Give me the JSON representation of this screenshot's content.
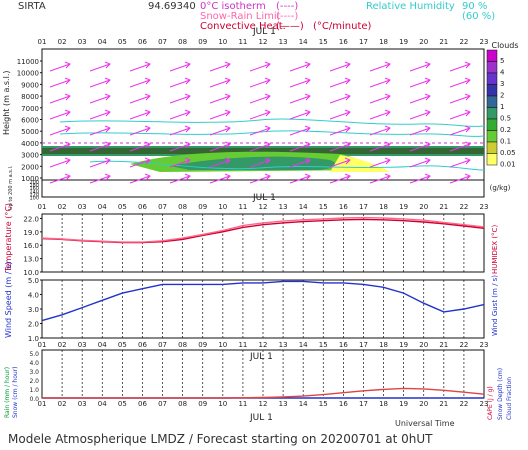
{
  "header": {
    "station": "SIRTA",
    "code": "94.69340",
    "legend_left": [
      {
        "label": "0°C isotherm",
        "sample": "(----)",
        "color": "#cc33cc"
      },
      {
        "label": "Snow-Rain Limit",
        "sample": "(----)",
        "color": "#ff66aa"
      },
      {
        "label": "Convective Heat.",
        "sample": "(——)",
        "unit": "(°C/minute)",
        "color": "#cc0033"
      }
    ],
    "legend_right": {
      "label": "Relative Humidity",
      "v1": "90 %",
      "v2": "(60 %)",
      "color": "#33cccc"
    }
  },
  "hours": [
    "01",
    "02",
    "03",
    "04",
    "05",
    "06",
    "07",
    "08",
    "09",
    "10",
    "11",
    "12",
    "13",
    "14",
    "15",
    "16",
    "17",
    "18",
    "19",
    "20",
    "21",
    "22",
    "23"
  ],
  "date_label": "JUL   1",
  "panel1": {
    "ylabel": "Height  (m a.s.l.)",
    "ylabel2": "Up to 200 m a.s.l.",
    "yticks": [
      "11000",
      "10000",
      "9000",
      "8000",
      "7000",
      "6000",
      "5000",
      "4000",
      "3000",
      "2000",
      "1000"
    ],
    "yticks_low": [
      "200",
      "180",
      "160",
      "140",
      "120",
      "100"
    ],
    "clouds_title": "Clouds",
    "clouds_unit": "(g/kg)",
    "colorbar": [
      {
        "label": "5",
        "color": "#cc00cc"
      },
      {
        "label": "4",
        "color": "#9933cc"
      },
      {
        "label": "3",
        "color": "#6633cc"
      },
      {
        "label": "2",
        "color": "#3333aa"
      },
      {
        "label": "1",
        "color": "#336699"
      },
      {
        "label": "0.5",
        "color": "#339966"
      },
      {
        "label": "0.2",
        "color": "#33aa33"
      },
      {
        "label": "0.1",
        "color": "#66cc33"
      },
      {
        "label": "0.05",
        "color": "#cccc33"
      },
      {
        "label": "0.01",
        "color": "#ffff66"
      }
    ]
  },
  "panel2": {
    "ylabel": "Temperature (°C)",
    "ylabel_right": "HUMIDEX (°C)",
    "yticks": [
      "22.0",
      "19.0",
      "16.0",
      "13.0",
      "10.0"
    ]
  },
  "panel3": {
    "ylabel": "Wind Speed (m / s)",
    "ylabel_right": "Wind Gust (m / s)",
    "yticks": [
      "5.0",
      "4.0",
      "3.0",
      "2.0",
      "1.0"
    ]
  },
  "panel4": {
    "ylabel_left1": "Rain (mm / hour)",
    "ylabel_left2": "Snow (cm / hour)",
    "ylabel_right1": "CAPE (J / g)",
    "ylabel_right2": "Snow Depth (cm)",
    "ylabel_right3": "Cloud Fraction",
    "yticks": [
      "5.0",
      "4.0",
      "3.0",
      "2.0",
      "1.0",
      "0.0"
    ],
    "xlabel": "Universal Time"
  },
  "footer": "Modele Atmospherique LMDZ / Forecast starting on 20200701 at 0hUT",
  "chart_data": [
    {
      "type": "line",
      "title": "",
      "ylabel": "Temperature (°C)",
      "ylim": [
        10,
        23
      ],
      "x": [
        "01",
        "02",
        "03",
        "04",
        "05",
        "06",
        "07",
        "08",
        "09",
        "10",
        "11",
        "12",
        "13",
        "14",
        "15",
        "16",
        "17",
        "18",
        "19",
        "20",
        "21",
        "22",
        "23"
      ],
      "series": [
        {
          "color": "#cc0033",
          "values": [
            17.5,
            17.3,
            17.0,
            16.8,
            16.6,
            16.6,
            16.8,
            17.3,
            18.2,
            19.0,
            20.0,
            20.6,
            21.0,
            21.3,
            21.5,
            21.7,
            21.8,
            21.7,
            21.5,
            21.2,
            20.8,
            20.3,
            19.8
          ]
        },
        {
          "color": "#ff6688",
          "values": [
            17.6,
            17.4,
            17.1,
            16.9,
            16.7,
            16.7,
            17.0,
            17.6,
            18.4,
            19.3,
            20.4,
            21.0,
            21.4,
            21.7,
            21.9,
            22.1,
            22.2,
            22.1,
            21.9,
            21.6,
            21.1,
            20.6,
            20.1
          ]
        }
      ]
    },
    {
      "type": "line",
      "title": "",
      "ylabel": "Wind Speed (m / s)",
      "ylim": [
        1,
        5
      ],
      "x": [
        "01",
        "02",
        "03",
        "04",
        "05",
        "06",
        "07",
        "08",
        "09",
        "10",
        "11",
        "12",
        "13",
        "14",
        "15",
        "16",
        "17",
        "18",
        "19",
        "20",
        "21",
        "22",
        "23"
      ],
      "series": [
        {
          "color": "#2233cc",
          "values": [
            2.2,
            2.6,
            3.1,
            3.6,
            4.1,
            4.4,
            4.7,
            4.7,
            4.7,
            4.7,
            4.8,
            4.8,
            4.9,
            4.9,
            4.8,
            4.8,
            4.7,
            4.5,
            4.1,
            3.4,
            2.8,
            3.0,
            3.3
          ]
        }
      ]
    },
    {
      "type": "line",
      "title": "",
      "ylabel": "Rain (mm / hour)",
      "ylim": [
        0,
        5
      ],
      "x": [
        "01",
        "02",
        "03",
        "04",
        "05",
        "06",
        "07",
        "08",
        "09",
        "10",
        "11",
        "12",
        "13",
        "14",
        "15",
        "16",
        "17",
        "18",
        "19",
        "20",
        "21",
        "22",
        "23"
      ],
      "series": [
        {
          "color": "#2233cc",
          "values": [
            0,
            0,
            0,
            0,
            0,
            0,
            0,
            0,
            0,
            0,
            0,
            0,
            0,
            0,
            0,
            0,
            0,
            0,
            0,
            0,
            0,
            0,
            0
          ]
        },
        {
          "color": "#dd4444",
          "values": [
            0,
            0,
            0,
            0,
            0,
            0,
            0,
            0,
            0,
            0,
            0.02,
            0.05,
            0.1,
            0.2,
            0.35,
            0.55,
            0.75,
            0.9,
            1.0,
            0.95,
            0.8,
            0.6,
            0.4
          ]
        }
      ]
    }
  ]
}
